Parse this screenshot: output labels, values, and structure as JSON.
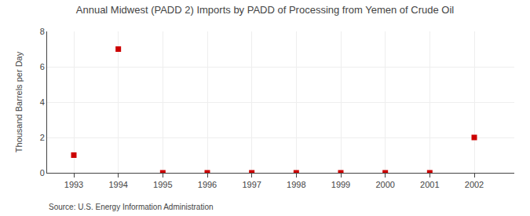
{
  "chart_data": {
    "type": "scatter",
    "title": "Annual Midwest (PADD 2) Imports by PADD of Processing from Yemen of Crude Oil",
    "ylabel": "Thousand Barrels per Day",
    "annotations": [
      "Source: U.S. Energy Information Administration"
    ],
    "x": [
      1993,
      1994,
      1995,
      1996,
      1997,
      1998,
      1999,
      2000,
      2001,
      2002
    ],
    "values": [
      1,
      7,
      0,
      0,
      0,
      0,
      0,
      0,
      0,
      2
    ],
    "color": "#cc0000",
    "marker": "square",
    "xlim": [
      1992.4,
      2002.9
    ],
    "ylim": [
      0,
      8
    ],
    "xticks": [
      1993,
      1994,
      1995,
      1996,
      1997,
      1998,
      1999,
      2000,
      2001,
      2002
    ],
    "yticks": [
      0,
      2,
      4,
      6,
      8
    ],
    "grid": true
  }
}
